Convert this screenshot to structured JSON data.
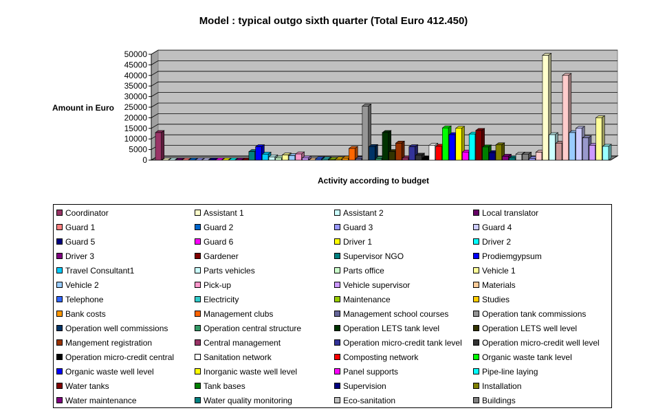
{
  "chart_data": {
    "type": "bar",
    "style": "3d-clustered-column",
    "title": "Model : typical outgo sixth quarter (Total Euro 412.450)",
    "xlabel": "Activity according to budget",
    "ylabel": "Amount in Euro",
    "ylim": [
      0,
      50000
    ],
    "yticks": [
      "0",
      "5000",
      "10000",
      "15000",
      "20000",
      "25000",
      "30000",
      "35000",
      "40000",
      "45000",
      "50000"
    ],
    "grid": true,
    "legend_position": "bottom",
    "series": [
      {
        "name": "Coordinator",
        "value": 13000,
        "color": "#993366"
      },
      {
        "name": "Assistant 1",
        "value": 0,
        "color": "#FFFFCC"
      },
      {
        "name": "Assistant 2",
        "value": 0,
        "color": "#CCFFFF"
      },
      {
        "name": "Local translator",
        "value": 0,
        "color": "#660066"
      },
      {
        "name": "Guard 1",
        "value": 0,
        "color": "#FF8080"
      },
      {
        "name": "Guard 2",
        "value": 0,
        "color": "#0066CC"
      },
      {
        "name": "Guard 3",
        "value": 0,
        "color": "#9999FF"
      },
      {
        "name": "Guard 4",
        "value": 0,
        "color": "#CCCCFF"
      },
      {
        "name": "Guard 5",
        "value": 0,
        "color": "#000080"
      },
      {
        "name": "Guard 6",
        "value": 0,
        "color": "#FF00FF"
      },
      {
        "name": "Driver 1",
        "value": 0,
        "color": "#FFFF00"
      },
      {
        "name": "Driver 2",
        "value": 0,
        "color": "#00FFFF"
      },
      {
        "name": "Driver 3",
        "value": 0,
        "color": "#800080"
      },
      {
        "name": "Gardener",
        "value": 0,
        "color": "#800000"
      },
      {
        "name": "Supervisor NGO",
        "value": 4000,
        "color": "#008080"
      },
      {
        "name": "Prodiemgypsum",
        "value": 6300,
        "color": "#0000FF"
      },
      {
        "name": "Travel Consultant1",
        "value": 2800,
        "color": "#00CCFF"
      },
      {
        "name": "Parts vehicles",
        "value": 1500,
        "color": "#CCFFFF"
      },
      {
        "name": "Parts office",
        "value": 1000,
        "color": "#CCFFCC"
      },
      {
        "name": "Vehicle 1",
        "value": 2400,
        "color": "#FFFF99"
      },
      {
        "name": "Vehicle 2",
        "value": 2100,
        "color": "#99CCFF"
      },
      {
        "name": "Pick-up",
        "value": 2900,
        "color": "#FF99CC"
      },
      {
        "name": "Vehicle supervisor",
        "value": 1000,
        "color": "#CC99FF"
      },
      {
        "name": "Materials",
        "value": 0,
        "color": "#FFCC99"
      },
      {
        "name": "Telephone",
        "value": 600,
        "color": "#3366FF"
      },
      {
        "name": "Electricity",
        "value": 500,
        "color": "#33CCCC"
      },
      {
        "name": "Maintenance",
        "value": 300,
        "color": "#99CC00"
      },
      {
        "name": "Studies",
        "value": 500,
        "color": "#FFCC00"
      },
      {
        "name": "Bank costs",
        "value": 900,
        "color": "#FF9900"
      },
      {
        "name": "Management clubs",
        "value": 5500,
        "color": "#FF6600"
      },
      {
        "name": "Management school courses",
        "value": 700,
        "color": "#666699"
      },
      {
        "name": "Operation tank commissions",
        "value": 25500,
        "color": "#969696"
      },
      {
        "name": "Operation well commissions",
        "value": 6400,
        "color": "#003366"
      },
      {
        "name": "Operation central structure",
        "value": 800,
        "color": "#339966"
      },
      {
        "name": "Operation LETS tank level",
        "value": 13000,
        "color": "#003300"
      },
      {
        "name": "Operation LETS well level",
        "value": 4000,
        "color": "#333300"
      },
      {
        "name": "Mangement registration",
        "value": 8000,
        "color": "#993300"
      },
      {
        "name": "Central management",
        "value": 1000,
        "color": "#993366"
      },
      {
        "name": "Operation micro-credit tank level",
        "value": 6300,
        "color": "#333399"
      },
      {
        "name": "Operation micro-credit well level",
        "value": 2300,
        "color": "#333333"
      },
      {
        "name": "Operation micro-credit central",
        "value": 1000,
        "color": "#000000"
      },
      {
        "name": "Sanitation network",
        "value": 7000,
        "color": "#FFFFFF"
      },
      {
        "name": "Composting network",
        "value": 6500,
        "color": "#FF0000"
      },
      {
        "name": "Organic waste tank level",
        "value": 15200,
        "color": "#00FF00"
      },
      {
        "name": "Organic waste well level",
        "value": 12000,
        "color": "#0000FF"
      },
      {
        "name": "Inorganic waste well level",
        "value": 15000,
        "color": "#FFFF00"
      },
      {
        "name": "Panel supports",
        "value": 3800,
        "color": "#FF00FF"
      },
      {
        "name": "Pipe-line laying",
        "value": 12300,
        "color": "#00FFFF"
      },
      {
        "name": "Water tanks",
        "value": 14000,
        "color": "#800000"
      },
      {
        "name": "Tank bases",
        "value": 6200,
        "color": "#008000"
      },
      {
        "name": "Supervision",
        "value": 3500,
        "color": "#000080"
      },
      {
        "name": "Installation",
        "value": 7200,
        "color": "#808000"
      },
      {
        "name": "Water maintenance",
        "value": 1800,
        "color": "#800080"
      },
      {
        "name": "Water quality monitoring",
        "value": 1000,
        "color": "#008080"
      },
      {
        "name": "Eco-sanitation",
        "value": 2800,
        "color": "#C0C0C0"
      },
      {
        "name": "Buildings",
        "value": 2800,
        "color": "#808080"
      },
      {
        "name": "",
        "value": 800,
        "color": "#9999FF"
      },
      {
        "name": "",
        "value": 3700,
        "color": "#FFCCCC"
      },
      {
        "name": "",
        "value": 49500,
        "color": "#FFFFCC"
      },
      {
        "name": "",
        "value": 12000,
        "color": "#CCFFFF"
      },
      {
        "name": "",
        "value": 8000,
        "color": "#CC9999"
      },
      {
        "name": "",
        "value": 40000,
        "color": "#FFCCCC"
      },
      {
        "name": "",
        "value": 13000,
        "color": "#99CCFF"
      },
      {
        "name": "",
        "value": 15000,
        "color": "#CCCCFF"
      },
      {
        "name": "",
        "value": 10500,
        "color": "#9999CC"
      },
      {
        "name": "",
        "value": 7000,
        "color": "#CC99FF"
      },
      {
        "name": "",
        "value": 20000,
        "color": "#FFFF99"
      },
      {
        "name": "",
        "value": 6500,
        "color": "#99FFFF"
      }
    ]
  }
}
